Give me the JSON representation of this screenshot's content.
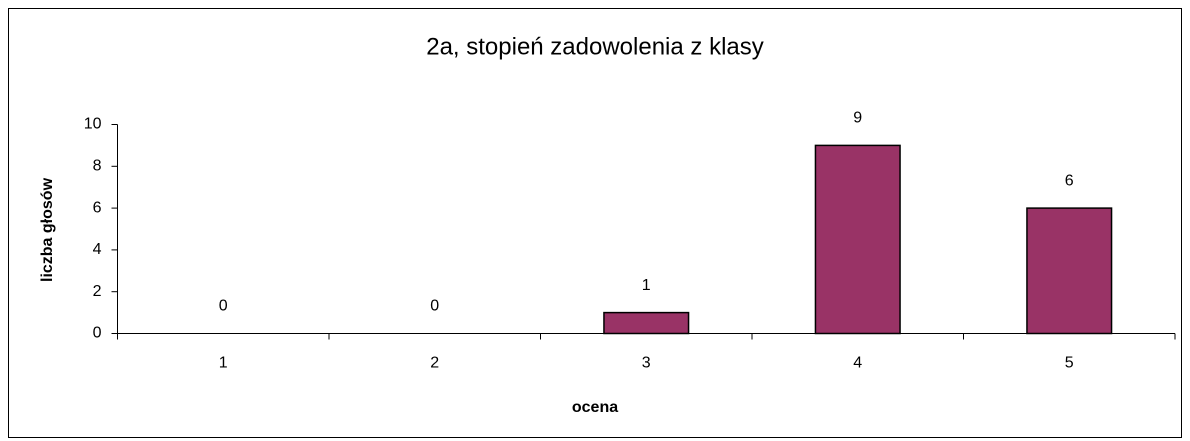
{
  "chart_data": {
    "type": "bar",
    "title": "2a, stopień zadowolenia z klasy",
    "x_label": "ocena",
    "y_label": "liczba głosów",
    "categories": [
      "1",
      "2",
      "3",
      "4",
      "5"
    ],
    "values": [
      0,
      0,
      1,
      9,
      6
    ],
    "color": "#993366",
    "ylim": [
      0,
      10
    ],
    "yticks": [
      0,
      2,
      4,
      6,
      8,
      10
    ],
    "grid": false
  }
}
